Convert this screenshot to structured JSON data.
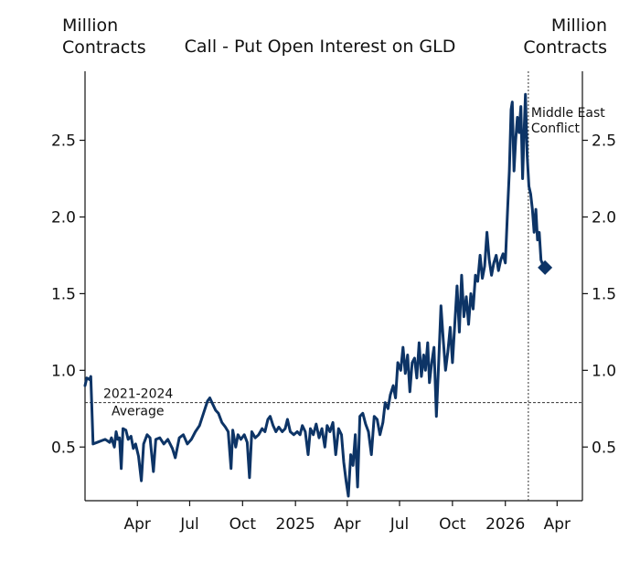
{
  "chart_data": {
    "type": "line",
    "title": "Call - Put Open Interest on GLD",
    "ylabel_left": "Million Contracts",
    "ylabel_right": "Million Contracts",
    "ylabel_left_lines": [
      "Million",
      "Contracts"
    ],
    "ylabel_right_lines": [
      "Million",
      "Contracts"
    ],
    "x_tick_labels": [
      "Apr",
      "Jul",
      "Oct",
      "2025",
      "Apr",
      "Jul",
      "Oct",
      "2026",
      "Apr"
    ],
    "x_tick_dates": [
      "2024-04-01",
      "2024-07-01",
      "2024-10-01",
      "2025-01-01",
      "2025-04-01",
      "2025-07-01",
      "2025-10-01",
      "2026-01-01",
      "2026-04-01"
    ],
    "xlim": [
      "2024-01-01",
      "2026-05-15"
    ],
    "ylim": [
      0.15,
      2.95
    ],
    "y_ticks": [
      0.5,
      1.0,
      1.5,
      2.0,
      2.5
    ],
    "y_tick_labels": [
      "0.5",
      "1.0",
      "1.5",
      "2.0",
      "2.5"
    ],
    "grid": false,
    "color": "#0d3466",
    "series": [
      {
        "name": "",
        "points": [
          [
            "2024-01-01",
            0.9
          ],
          [
            "2024-01-04",
            0.95
          ],
          [
            "2024-01-09",
            0.94
          ],
          [
            "2024-01-11",
            0.96
          ],
          [
            "2024-01-15",
            0.52
          ],
          [
            "2024-01-22",
            0.53
          ],
          [
            "2024-01-29",
            0.54
          ],
          [
            "2024-02-05",
            0.55
          ],
          [
            "2024-02-09",
            0.54
          ],
          [
            "2024-02-13",
            0.53
          ],
          [
            "2024-02-16",
            0.56
          ],
          [
            "2024-02-21",
            0.5
          ],
          [
            "2024-02-24",
            0.6
          ],
          [
            "2024-02-27",
            0.55
          ],
          [
            "2024-03-01",
            0.56
          ],
          [
            "2024-03-04",
            0.36
          ],
          [
            "2024-03-07",
            0.62
          ],
          [
            "2024-03-12",
            0.61
          ],
          [
            "2024-03-16",
            0.55
          ],
          [
            "2024-03-21",
            0.57
          ],
          [
            "2024-03-25",
            0.49
          ],
          [
            "2024-03-29",
            0.52
          ],
          [
            "2024-04-03",
            0.44
          ],
          [
            "2024-04-08",
            0.28
          ],
          [
            "2024-04-12",
            0.52
          ],
          [
            "2024-04-18",
            0.58
          ],
          [
            "2024-04-23",
            0.56
          ],
          [
            "2024-04-29",
            0.34
          ],
          [
            "2024-05-03",
            0.55
          ],
          [
            "2024-05-10",
            0.56
          ],
          [
            "2024-05-17",
            0.52
          ],
          [
            "2024-05-24",
            0.55
          ],
          [
            "2024-06-01",
            0.49
          ],
          [
            "2024-06-06",
            0.43
          ],
          [
            "2024-06-13",
            0.56
          ],
          [
            "2024-06-20",
            0.58
          ],
          [
            "2024-06-27",
            0.52
          ],
          [
            "2024-07-04",
            0.55
          ],
          [
            "2024-07-11",
            0.6
          ],
          [
            "2024-07-18",
            0.64
          ],
          [
            "2024-07-25",
            0.72
          ],
          [
            "2024-08-01",
            0.8
          ],
          [
            "2024-08-05",
            0.82
          ],
          [
            "2024-08-10",
            0.78
          ],
          [
            "2024-08-15",
            0.74
          ],
          [
            "2024-08-20",
            0.72
          ],
          [
            "2024-08-26",
            0.66
          ],
          [
            "2024-09-01",
            0.63
          ],
          [
            "2024-09-06",
            0.6
          ],
          [
            "2024-09-11",
            0.36
          ],
          [
            "2024-09-14",
            0.61
          ],
          [
            "2024-09-19",
            0.5
          ],
          [
            "2024-09-23",
            0.58
          ],
          [
            "2024-09-28",
            0.55
          ],
          [
            "2024-10-04",
            0.58
          ],
          [
            "2024-10-09",
            0.53
          ],
          [
            "2024-10-13",
            0.3
          ],
          [
            "2024-10-17",
            0.6
          ],
          [
            "2024-10-23",
            0.56
          ],
          [
            "2024-10-29",
            0.58
          ],
          [
            "2024-11-04",
            0.62
          ],
          [
            "2024-11-09",
            0.6
          ],
          [
            "2024-11-14",
            0.68
          ],
          [
            "2024-11-18",
            0.7
          ],
          [
            "2024-11-23",
            0.64
          ],
          [
            "2024-11-28",
            0.6
          ],
          [
            "2024-12-03",
            0.63
          ],
          [
            "2024-12-09",
            0.6
          ],
          [
            "2024-12-14",
            0.62
          ],
          [
            "2024-12-18",
            0.68
          ],
          [
            "2024-12-23",
            0.6
          ],
          [
            "2024-12-29",
            0.58
          ],
          [
            "2025-01-04",
            0.6
          ],
          [
            "2025-01-09",
            0.58
          ],
          [
            "2025-01-13",
            0.64
          ],
          [
            "2025-01-18",
            0.6
          ],
          [
            "2025-01-23",
            0.45
          ],
          [
            "2025-01-27",
            0.62
          ],
          [
            "2025-02-01",
            0.58
          ],
          [
            "2025-02-06",
            0.65
          ],
          [
            "2025-02-11",
            0.56
          ],
          [
            "2025-02-16",
            0.62
          ],
          [
            "2025-02-21",
            0.5
          ],
          [
            "2025-02-25",
            0.64
          ],
          [
            "2025-03-02",
            0.6
          ],
          [
            "2025-03-07",
            0.66
          ],
          [
            "2025-03-12",
            0.45
          ],
          [
            "2025-03-17",
            0.62
          ],
          [
            "2025-03-22",
            0.58
          ],
          [
            "2025-03-26",
            0.4
          ],
          [
            "2025-03-30",
            0.28
          ],
          [
            "2025-04-03",
            0.18
          ],
          [
            "2025-04-07",
            0.45
          ],
          [
            "2025-04-11",
            0.38
          ],
          [
            "2025-04-15",
            0.58
          ],
          [
            "2025-04-19",
            0.24
          ],
          [
            "2025-04-23",
            0.7
          ],
          [
            "2025-04-28",
            0.72
          ],
          [
            "2025-05-03",
            0.65
          ],
          [
            "2025-05-08",
            0.6
          ],
          [
            "2025-05-13",
            0.45
          ],
          [
            "2025-05-18",
            0.7
          ],
          [
            "2025-05-23",
            0.68
          ],
          [
            "2025-05-28",
            0.58
          ],
          [
            "2025-06-02",
            0.66
          ],
          [
            "2025-06-06",
            0.79
          ],
          [
            "2025-06-11",
            0.75
          ],
          [
            "2025-06-15",
            0.84
          ],
          [
            "2025-06-20",
            0.9
          ],
          [
            "2025-06-24",
            0.82
          ],
          [
            "2025-06-28",
            1.05
          ],
          [
            "2025-07-03",
            1.0
          ],
          [
            "2025-07-07",
            1.15
          ],
          [
            "2025-07-11",
            0.98
          ],
          [
            "2025-07-15",
            1.1
          ],
          [
            "2025-07-19",
            0.86
          ],
          [
            "2025-07-23",
            1.05
          ],
          [
            "2025-07-27",
            1.08
          ],
          [
            "2025-07-31",
            0.95
          ],
          [
            "2025-08-04",
            1.18
          ],
          [
            "2025-08-08",
            0.96
          ],
          [
            "2025-08-12",
            1.1
          ],
          [
            "2025-08-15",
            1.0
          ],
          [
            "2025-08-19",
            1.18
          ],
          [
            "2025-08-22",
            0.92
          ],
          [
            "2025-08-26",
            1.05
          ],
          [
            "2025-08-30",
            1.15
          ],
          [
            "2025-09-03",
            0.7
          ],
          [
            "2025-09-07",
            1.05
          ],
          [
            "2025-09-11",
            1.42
          ],
          [
            "2025-09-15",
            1.2
          ],
          [
            "2025-09-19",
            1.0
          ],
          [
            "2025-09-23",
            1.12
          ],
          [
            "2025-09-27",
            1.28
          ],
          [
            "2025-10-01",
            1.05
          ],
          [
            "2025-10-05",
            1.3
          ],
          [
            "2025-10-09",
            1.55
          ],
          [
            "2025-10-13",
            1.25
          ],
          [
            "2025-10-17",
            1.62
          ],
          [
            "2025-10-21",
            1.35
          ],
          [
            "2025-10-25",
            1.48
          ],
          [
            "2025-10-29",
            1.3
          ],
          [
            "2025-11-02",
            1.5
          ],
          [
            "2025-11-06",
            1.4
          ],
          [
            "2025-11-10",
            1.62
          ],
          [
            "2025-11-14",
            1.58
          ],
          [
            "2025-11-18",
            1.75
          ],
          [
            "2025-11-22",
            1.6
          ],
          [
            "2025-11-26",
            1.68
          ],
          [
            "2025-11-30",
            1.9
          ],
          [
            "2025-12-04",
            1.72
          ],
          [
            "2025-12-08",
            1.62
          ],
          [
            "2025-12-12",
            1.7
          ],
          [
            "2025-12-16",
            1.75
          ],
          [
            "2025-12-20",
            1.65
          ],
          [
            "2025-12-24",
            1.72
          ],
          [
            "2025-12-28",
            1.76
          ],
          [
            "2026-01-01",
            1.7
          ],
          [
            "2026-01-05",
            2.05
          ],
          [
            "2026-01-08",
            2.3
          ],
          [
            "2026-01-11",
            2.7
          ],
          [
            "2026-01-13",
            2.75
          ],
          [
            "2026-01-16",
            2.3
          ],
          [
            "2026-01-19",
            2.5
          ],
          [
            "2026-01-22",
            2.65
          ],
          [
            "2026-01-25",
            2.55
          ],
          [
            "2026-01-28",
            2.72
          ],
          [
            "2026-01-31",
            2.25
          ],
          [
            "2026-02-03",
            2.6
          ],
          [
            "2026-02-05",
            2.8
          ],
          [
            "2026-02-08",
            2.4
          ],
          [
            "2026-02-11",
            2.2
          ],
          [
            "2026-02-14",
            2.15
          ],
          [
            "2026-02-17",
            2.05
          ],
          [
            "2026-02-20",
            1.9
          ],
          [
            "2026-02-23",
            2.05
          ],
          [
            "2026-02-26",
            1.85
          ],
          [
            "2026-03-01",
            1.9
          ],
          [
            "2026-03-04",
            1.72
          ],
          [
            "2026-03-07",
            1.69
          ],
          [
            "2026-03-10",
            1.67
          ]
        ]
      }
    ],
    "average_line": {
      "label_lines": [
        "2021-2024",
        "Average"
      ],
      "value": 0.79
    },
    "event_line": {
      "label_lines": [
        "Middle East",
        "Conflict"
      ],
      "date": "2026-02-10"
    },
    "end_marker": {
      "date": "2026-03-11",
      "value": 1.67,
      "shape": "diamond"
    }
  }
}
